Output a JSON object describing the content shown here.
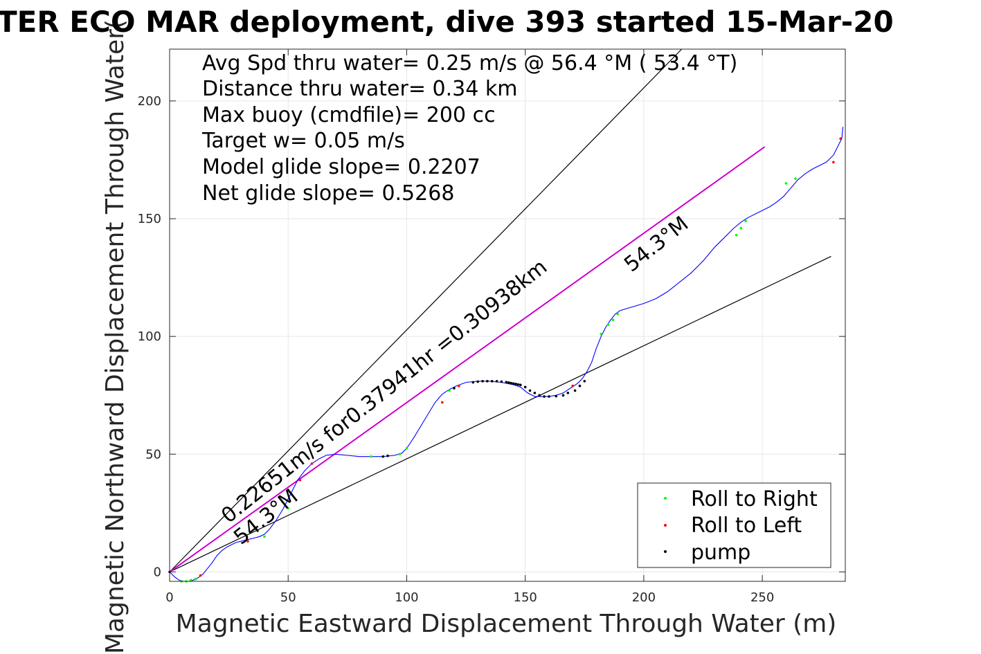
{
  "chart_data": {
    "type": "line",
    "title": "TER ECO MAR deployment, dive 393 started 15-Mar-20",
    "xlabel": "Magnetic Eastward Displacement Through Water (m)",
    "ylabel": "Magnetic Northward Displacement Through Water(",
    "xlim": [
      0,
      285
    ],
    "ylim": [
      -4,
      222
    ],
    "xticks": [
      0,
      50,
      100,
      150,
      200,
      250
    ],
    "yticks": [
      0,
      50,
      100,
      150,
      200
    ],
    "xtick_labels": [
      "0",
      "50",
      "100",
      "150",
      "200",
      "250"
    ],
    "ytick_labels": [
      "0",
      "50",
      "100",
      "150",
      "200"
    ],
    "grid": true,
    "legend_position": "bottom-right",
    "stats_lines": [
      "Avg Spd thru water=  0.25 m/s @  56.4 °M ( 53.4 °T)",
      "Distance thru water=  0.34 km",
      "Max buoy (cmdfile)= 200 cc",
      "Target w= 0.05 m/s",
      "Model glide slope= 0.2207",
      "Net glide slope= 0.5268"
    ],
    "annotations": {
      "track_summary": "0.22651m/s for0.37941hr =0.30938km",
      "heading_lower": "54.3°M",
      "heading_upper": "54.3°M"
    },
    "reference_lines": [
      {
        "x": [
          0,
          216
        ],
        "y": [
          0,
          222
        ]
      },
      {
        "x": [
          0,
          279
        ],
        "y": [
          0,
          134
        ]
      }
    ],
    "heading_line": {
      "x": [
        0,
        251
      ],
      "y": [
        0,
        180.5
      ]
    },
    "series": [
      {
        "x": [
          0,
          2,
          4,
          6,
          8,
          10,
          12,
          14,
          16,
          18,
          20,
          22,
          24,
          26,
          28,
          30,
          32,
          34,
          36,
          38,
          40,
          42,
          45,
          48,
          51,
          54,
          57,
          60,
          63,
          66,
          70,
          75,
          80,
          85,
          90,
          95,
          98,
          100,
          103,
          106,
          109,
          112,
          115,
          118,
          121,
          125,
          130,
          135,
          140,
          145,
          148,
          151,
          154,
          157,
          160,
          163,
          166,
          169,
          172,
          174,
          176,
          178,
          180,
          182,
          184,
          186,
          188,
          190,
          195,
          200,
          205,
          210,
          215,
          220,
          225,
          230,
          235,
          238,
          241,
          244,
          247,
          250,
          253,
          256,
          259,
          262,
          265,
          268,
          271,
          274,
          277,
          280,
          282,
          283.5,
          284
        ],
        "y": [
          0,
          -2,
          -3.5,
          -4,
          -4,
          -3.5,
          -2.5,
          -1,
          1.5,
          4,
          7,
          9,
          10.5,
          11.5,
          12.5,
          13,
          13.5,
          14,
          14.5,
          15,
          16,
          18,
          22,
          27,
          33,
          39,
          43,
          46,
          48,
          49.5,
          50,
          49.5,
          49,
          49,
          49,
          49.5,
          50.5,
          52.5,
          57,
          62,
          67,
          72,
          75.5,
          77.5,
          79,
          80.5,
          81,
          81,
          80.5,
          79.5,
          78.5,
          76,
          74.5,
          74.5,
          74.5,
          75,
          76,
          78,
          80,
          82,
          85,
          89,
          95,
          100,
          104,
          107,
          109.5,
          111,
          112.5,
          114,
          116,
          119,
          123,
          127,
          132,
          138,
          143,
          146,
          148.5,
          150.5,
          152,
          153.5,
          155,
          157,
          159.5,
          163,
          166.5,
          169,
          171,
          172.5,
          174,
          177,
          181,
          184,
          189
        ]
      }
    ],
    "markers": {
      "roll_right": {
        "x": [
          5,
          7,
          9,
          11,
          40,
          50,
          85,
          97,
          100,
          118,
          182,
          185,
          187,
          189,
          260,
          264,
          239,
          241,
          243
        ],
        "y": [
          -4,
          -4,
          -3.5,
          -3,
          15,
          27,
          49,
          50,
          52.5,
          77,
          101,
          105,
          107,
          109.5,
          165,
          167,
          143,
          146,
          149
        ]
      },
      "roll_left": {
        "x": [
          13,
          33,
          55,
          60,
          115,
          122,
          170,
          280,
          283
        ],
        "y": [
          -1.5,
          13,
          39,
          46,
          72,
          79,
          79,
          174,
          184
        ]
      },
      "pump": {
        "x": [
          0,
          90,
          92,
          120,
          128,
          130,
          132,
          134,
          136,
          138,
          140,
          142,
          143,
          144,
          145,
          146,
          147,
          148,
          150,
          152,
          154,
          156,
          158,
          160,
          163,
          166,
          168,
          171,
          173,
          175
        ],
        "y": [
          0,
          49,
          49.3,
          78,
          80.5,
          80.8,
          81,
          81,
          81,
          81,
          80.8,
          80.6,
          80.4,
          80.2,
          80,
          79.8,
          79.6,
          79.4,
          78.5,
          77,
          76,
          75,
          74.5,
          74.5,
          74.6,
          75,
          76,
          77,
          79,
          81
        ]
      }
    },
    "legend": [
      {
        "label": "Roll to Right",
        "color": "#00ff00"
      },
      {
        "label": "Roll to Left",
        "color": "#ff0000"
      },
      {
        "label": "pump",
        "color": "#000000"
      }
    ]
  },
  "colors": {
    "track_line": "#0000ff",
    "heading_line": "#ff00ff",
    "heading_line_core": "#800080",
    "reference_line": "#000000",
    "grid": "#e6e6e6",
    "axes": "#262626"
  }
}
